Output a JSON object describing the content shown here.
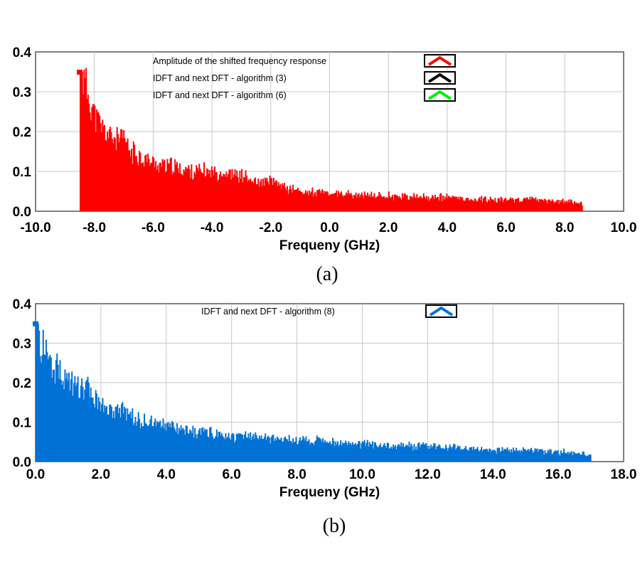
{
  "chart_data": [
    {
      "type": "area",
      "xlabel": "Frequeny (GHz)",
      "ylabel": "",
      "xlim": [
        -10.0,
        10.0
      ],
      "ylim": [
        0.0,
        0.4
      ],
      "x_ticks": [
        "-10.0",
        "-8.0",
        "-6.0",
        "-4.0",
        "-2.0",
        "0.0",
        "2.0",
        "4.0",
        "6.0",
        "8.0",
        "10.0"
      ],
      "y_ticks": [
        "0.0",
        "0.1",
        "0.2",
        "0.3",
        "0.4"
      ],
      "grid": true,
      "legend_position": "top-right",
      "caption": "(a)",
      "series": [
        {
          "name": "Amplitude of the shifted frequency response",
          "color": "#ff0000",
          "x": [
            -8.5,
            -8.4,
            -8.2,
            -8.0,
            -7.8,
            -7.5,
            -7.2,
            -7.0,
            -6.8,
            -6.5,
            -6.0,
            -5.5,
            -5.0,
            -4.5,
            -4.0,
            -3.5,
            -3.0,
            -2.5,
            -2.0,
            -1.5,
            -1.0,
            0.0,
            1.0,
            2.0,
            3.0,
            4.0,
            5.0,
            6.0,
            7.0,
            8.0,
            8.6
          ],
          "y": [
            0.35,
            0.33,
            0.29,
            0.24,
            0.21,
            0.19,
            0.18,
            0.18,
            0.15,
            0.14,
            0.12,
            0.115,
            0.105,
            0.1,
            0.1,
            0.095,
            0.09,
            0.07,
            0.075,
            0.06,
            0.05,
            0.045,
            0.04,
            0.04,
            0.035,
            0.035,
            0.03,
            0.03,
            0.03,
            0.025,
            0.02
          ]
        },
        {
          "name": "IDFT and next DFT - algorithm (3)",
          "color": "#000000",
          "x": [],
          "y": []
        },
        {
          "name": "IDFT and next DFT - algorithm (6)",
          "color": "#00ee00",
          "x": [],
          "y": []
        }
      ]
    },
    {
      "type": "area",
      "xlabel": "Frequeny (GHz)",
      "ylabel": "",
      "xlim": [
        0.0,
        18.0
      ],
      "ylim": [
        0.0,
        0.4
      ],
      "x_ticks": [
        "0.0",
        "2.0",
        "4.0",
        "6.0",
        "8.0",
        "10.0",
        "12.0",
        "14.0",
        "16.0",
        "18.0"
      ],
      "y_ticks": [
        "0.0",
        "0.1",
        "0.2",
        "0.3",
        "0.4"
      ],
      "grid": true,
      "legend_position": "top-right",
      "caption": "(b)",
      "series": [
        {
          "name": "IDFT and next DFT - algorithm (8)",
          "color": "#0072d6",
          "x": [
            0.0,
            0.1,
            0.3,
            0.5,
            0.8,
            1.0,
            1.3,
            1.6,
            2.0,
            2.5,
            3.0,
            3.5,
            4.0,
            4.5,
            5.0,
            6.0,
            7.0,
            8.0,
            9.0,
            10.0,
            11.0,
            12.0,
            13.0,
            14.0,
            15.0,
            16.0,
            17.0
          ],
          "y": [
            0.35,
            0.3,
            0.28,
            0.25,
            0.23,
            0.2,
            0.18,
            0.18,
            0.14,
            0.13,
            0.11,
            0.1,
            0.09,
            0.08,
            0.075,
            0.065,
            0.06,
            0.055,
            0.05,
            0.045,
            0.04,
            0.04,
            0.035,
            0.03,
            0.03,
            0.025,
            0.02
          ]
        }
      ]
    }
  ]
}
